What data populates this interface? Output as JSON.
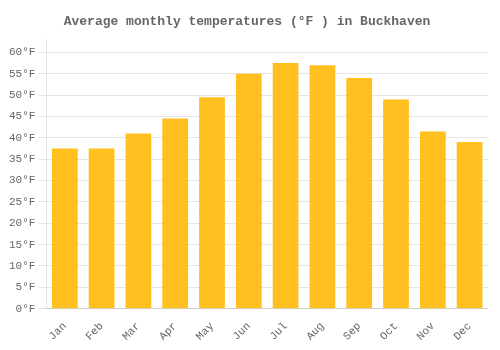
{
  "chart_data": {
    "type": "bar",
    "title": "Average monthly temperatures (°F ) in Buckhaven",
    "categories": [
      "Jan",
      "Feb",
      "Mar",
      "Apr",
      "May",
      "Jun",
      "Jul",
      "Aug",
      "Sep",
      "Oct",
      "Nov",
      "Dec"
    ],
    "values": [
      37.5,
      37.5,
      41,
      44.5,
      49.5,
      55,
      57.5,
      57,
      54,
      49,
      41.5,
      39
    ],
    "color": "#FFC020",
    "ylim": [
      0,
      63
    ],
    "yticks": [
      {
        "value": 0,
        "label": "0°F"
      },
      {
        "value": 5,
        "label": "5°F"
      },
      {
        "value": 10,
        "label": "10°F"
      },
      {
        "value": 15,
        "label": "15°F"
      },
      {
        "value": 20,
        "label": "20°F"
      },
      {
        "value": 25,
        "label": "25°F"
      },
      {
        "value": 30,
        "label": "30°F"
      },
      {
        "value": 35,
        "label": "35°F"
      },
      {
        "value": 40,
        "label": "40°F"
      },
      {
        "value": 45,
        "label": "45°F"
      },
      {
        "value": 50,
        "label": "50°F"
      },
      {
        "value": 55,
        "label": "55°F"
      },
      {
        "value": 60,
        "label": "60°F"
      }
    ],
    "grid": true
  }
}
